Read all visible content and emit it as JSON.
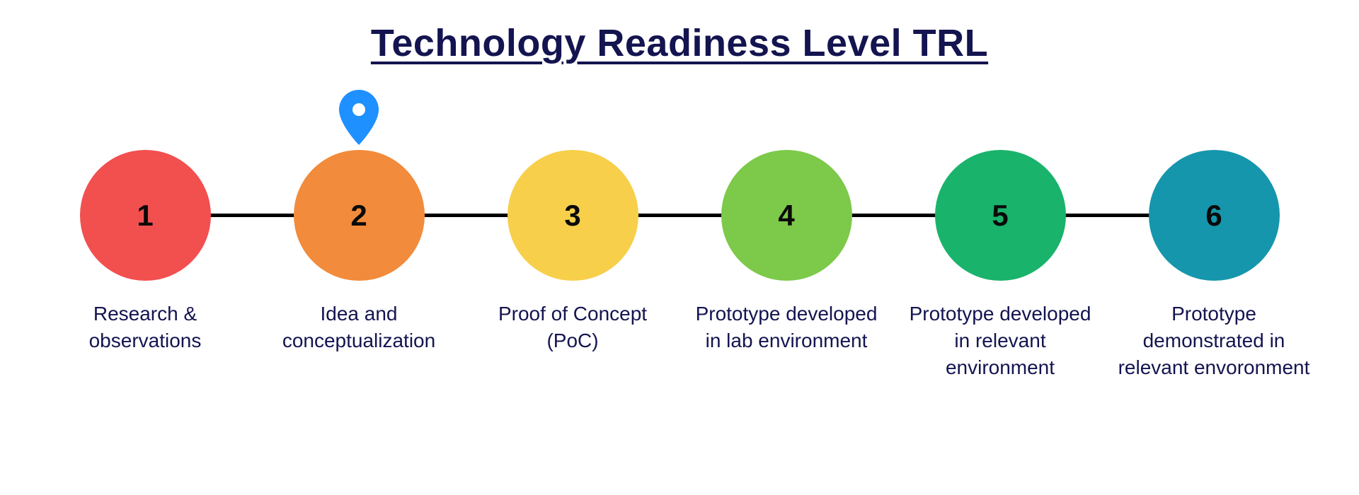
{
  "title": {
    "text": "Technology Readiness Level TRL",
    "color": "#141450",
    "fontsize": 54
  },
  "connector": {
    "color": "#000000",
    "height": 5
  },
  "pin": {
    "on_node_index": 1,
    "color": "#1e90ff",
    "inner_color": "#ffffff"
  },
  "label_color": "#141450",
  "nodes": [
    {
      "number": "1",
      "label": "Research & observations",
      "color": "#f24f4f"
    },
    {
      "number": "2",
      "label": "Idea and conceptualization",
      "color": "#f28b3b"
    },
    {
      "number": "3",
      "label": "Proof of Concept (PoC)",
      "color": "#f7cf4a"
    },
    {
      "number": "4",
      "label": "Prototype developed in lab environment",
      "color": "#7dc94a"
    },
    {
      "number": "5",
      "label": "Prototype developed in relevant environment",
      "color": "#19b36b"
    },
    {
      "number": "6",
      "label": "Prototype demonstrated in relevant envoronment",
      "color": "#1596ac"
    }
  ]
}
